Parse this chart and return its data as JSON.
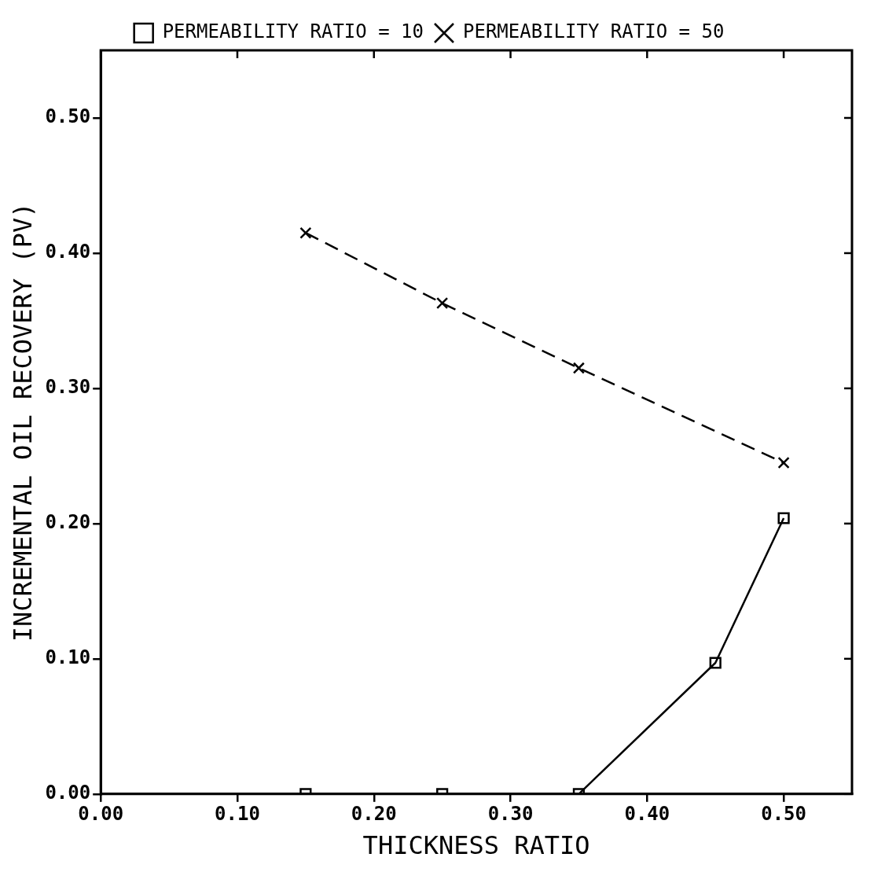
{
  "chart_data": {
    "type": "line",
    "xlabel": "THICKNESS RATIO",
    "ylabel": "INCREMENTAL OIL RECOVERY (PV)",
    "xlim": [
      0,
      0.55
    ],
    "xticks": [
      {
        "value": 0,
        "label": "0.00"
      },
      {
        "value": 0.1,
        "label": "0.10"
      },
      {
        "value": 0.2,
        "label": "0.20"
      },
      {
        "value": 0.3,
        "label": "0.30"
      },
      {
        "value": 0.4,
        "label": "0.40"
      },
      {
        "value": 0.5,
        "label": "0.50"
      }
    ],
    "ylim": [
      0,
      0.55
    ],
    "yticks": [
      {
        "value": 0,
        "label": "0.00"
      },
      {
        "value": 0.1,
        "label": "0.10"
      },
      {
        "value": 0.2,
        "label": "0.20"
      },
      {
        "value": 0.3,
        "label": "0.30"
      },
      {
        "value": 0.4,
        "label": "0.40"
      },
      {
        "value": 0.5,
        "label": "0.50"
      }
    ],
    "grid": false,
    "legend": "top",
    "series": [
      {
        "name": "PERMEABILITY RATIO = 10",
        "color": "#000000",
        "marker": "square",
        "line_style": "solid",
        "x": [
          0.15,
          0.25,
          0.35,
          0.45,
          0.5
        ],
        "values": [
          0,
          0,
          0,
          0.097,
          0.204
        ]
      },
      {
        "name": "PERMEABILITY RATIO = 50",
        "color": "#000000",
        "marker": "cross",
        "line_style": "dashed",
        "x": [
          0.15,
          0.25,
          0.35,
          0.5
        ],
        "values": [
          0.415,
          0.363,
          0.315,
          0.245
        ]
      }
    ]
  }
}
